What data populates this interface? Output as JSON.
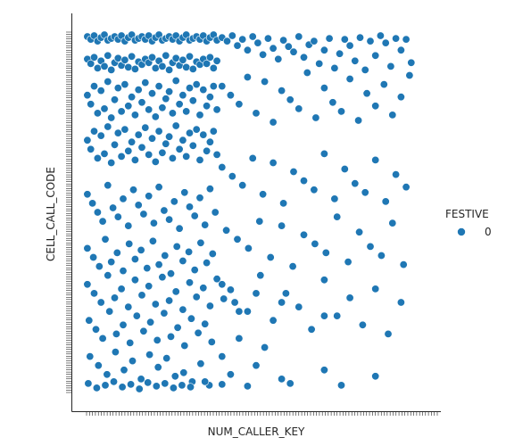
{
  "chart_data": {
    "type": "scatter",
    "title": "",
    "xlabel": "NUM_CALLER_KEY",
    "ylabel": "CELL_CALL_CODE",
    "xlim": [
      0,
      400
    ],
    "ylim": [
      0,
      400
    ],
    "x_tick_labels": [],
    "y_tick_labels": [],
    "x_tick_count": 120,
    "y_tick_count": 160,
    "grid": false,
    "legend": {
      "title": "FESTIVE",
      "placement": "right",
      "entries": [
        {
          "label": "0",
          "color": "#1f77b4"
        }
      ]
    },
    "series": [
      {
        "color": "#1f77b4",
        "x": [
          2,
          6,
          10,
          14,
          18,
          22,
          26,
          30,
          34,
          38,
          42,
          46,
          50,
          54,
          58,
          62,
          66,
          70,
          74,
          78,
          82,
          86,
          90,
          94,
          98,
          102,
          106,
          110,
          114,
          118,
          122,
          126,
          130,
          134,
          138,
          142,
          146,
          150,
          154,
          2,
          6,
          10,
          14,
          18,
          22,
          26,
          30,
          34,
          38,
          42,
          46,
          50,
          54,
          58,
          62,
          66,
          70,
          74,
          78,
          82,
          86,
          90,
          94,
          98,
          102,
          106,
          110,
          114,
          118,
          122,
          126,
          130,
          134,
          138,
          142,
          146,
          150,
          154,
          2,
          6,
          10,
          14,
          18,
          22,
          26,
          30,
          34,
          38,
          42,
          46,
          50,
          54,
          58,
          62,
          66,
          70,
          74,
          78,
          82,
          86,
          90,
          94,
          98,
          102,
          106,
          110,
          114,
          118,
          122,
          126,
          130,
          134,
          138,
          142,
          146,
          150,
          154,
          2,
          6,
          10,
          14,
          18,
          22,
          26,
          30,
          34,
          38,
          42,
          46,
          50,
          54,
          58,
          62,
          66,
          70,
          74,
          78,
          82,
          86,
          90,
          94,
          98,
          102,
          106,
          110,
          114,
          118,
          122,
          126,
          130,
          134,
          138,
          142,
          146,
          150,
          154,
          160,
          166,
          172,
          178,
          184,
          190,
          196,
          202,
          208,
          214,
          220,
          226,
          232,
          238,
          244,
          250,
          256,
          262,
          268,
          274,
          280,
          286,
          292,
          298,
          304,
          310,
          316,
          322,
          328,
          334,
          340,
          346,
          352,
          358,
          364,
          370,
          376,
          382,
          160,
          170,
          180,
          190,
          200,
          210,
          220,
          230,
          240,
          250,
          260,
          270,
          280,
          290,
          300,
          310,
          320,
          330,
          340,
          350,
          360,
          370,
          380,
          160,
          172,
          184,
          196,
          208,
          220,
          232,
          244,
          256,
          268,
          280,
          292,
          304,
          316,
          328,
          340,
          352,
          364,
          376,
          165,
          178,
          191,
          204,
          217,
          230,
          243,
          256,
          269,
          282,
          295,
          308,
          321,
          334,
          347,
          360,
          373,
          2,
          8,
          14,
          20,
          26,
          32,
          38,
          44,
          50,
          56,
          62,
          68,
          74,
          80,
          86,
          92,
          98,
          104,
          110,
          116,
          122,
          128,
          134,
          140,
          146,
          152,
          2,
          9,
          16,
          23,
          30,
          37,
          44,
          51,
          58,
          65,
          72,
          79,
          86,
          93,
          100,
          107,
          114,
          121,
          128,
          135,
          142,
          149,
          2,
          10,
          18,
          26,
          34,
          42,
          50,
          58,
          66,
          74,
          82,
          90,
          98,
          106,
          114,
          122,
          130,
          138,
          146,
          154,
          162,
          170,
          180,
          200,
          230,
          280,
          4,
          12,
          20,
          28,
          36,
          44,
          52,
          60,
          68,
          76,
          84,
          92,
          100,
          108,
          116,
          124,
          132,
          140,
          148,
          160,
          180,
          210,
          160,
          175,
          190,
          205,
          220,
          235,
          250,
          265,
          280,
          295,
          310,
          325,
          340,
          355,
          370,
          5,
          15,
          25,
          35,
          45,
          55,
          65,
          75,
          85,
          95,
          105,
          115,
          125,
          135,
          145,
          170,
          200,
          230,
          280,
          340,
          3,
          13,
          23,
          33,
          43,
          53,
          63,
          73,
          83,
          93,
          103,
          113,
          123,
          140,
          160,
          190,
          240,
          300
        ],
        "y": [
          395,
          392,
          396,
          390,
          394,
          397,
          391,
          393,
          395,
          392,
          396,
          390,
          394,
          397,
          391,
          393,
          395,
          392,
          396,
          390,
          394,
          397,
          391,
          393,
          395,
          392,
          396,
          390,
          394,
          397,
          391,
          393,
          395,
          392,
          396,
          390,
          394,
          397,
          391,
          370,
          365,
          372,
          360,
          368,
          362,
          374,
          358,
          366,
          371,
          363,
          369,
          361,
          373,
          359,
          367,
          364,
          370,
          366,
          372,
          360,
          368,
          362,
          374,
          358,
          366,
          371,
          363,
          369,
          361,
          373,
          359,
          367,
          364,
          370,
          365,
          372,
          360,
          368,
          330,
          320,
          340,
          310,
          335,
          315,
          345,
          305,
          325,
          338,
          312,
          342,
          318,
          328,
          308,
          336,
          322,
          344,
          314,
          332,
          306,
          340,
          316,
          326,
          334,
          310,
          346,
          320,
          330,
          312,
          338,
          324,
          342,
          308,
          336,
          318,
          328,
          340,
          314,
          280,
          270,
          290,
          260,
          285,
          265,
          295,
          255,
          275,
          288,
          262,
          292,
          268,
          278,
          258,
          286,
          272,
          294,
          264,
          282,
          256,
          290,
          266,
          276,
          284,
          260,
          296,
          270,
          280,
          262,
          288,
          274,
          292,
          258,
          286,
          268,
          278,
          290,
          264,
          394,
          390,
          396,
          385,
          392,
          380,
          395,
          388,
          375,
          393,
          382,
          370,
          391,
          384,
          378,
          395,
          372,
          386,
          390,
          365,
          380,
          393,
          360,
          376,
          392,
          385,
          368,
          394,
          358,
          390,
          374,
          396,
          388,
          362,
          393,
          380,
          392,
          366,
          340,
          330,
          320,
          350,
          310,
          345,
          300,
          335,
          325,
          315,
          355,
          305,
          338,
          322,
          312,
          348,
          302,
          332,
          318,
          342,
          308,
          328,
          352,
          250,
          240,
          230,
          260,
          220,
          255,
          210,
          245,
          235,
          225,
          265,
          215,
          248,
          232,
          222,
          258,
          212,
          242,
          228,
          180,
          170,
          160,
          190,
          150,
          185,
          140,
          175,
          165,
          155,
          195,
          145,
          178,
          162,
          152,
          188,
          142,
          220,
          210,
          200,
          190,
          230,
          205,
          195,
          215,
          185,
          225,
          208,
          198,
          218,
          188,
          228,
          202,
          192,
          212,
          182,
          222,
          206,
          196,
          216,
          186,
          226,
          200,
          160,
          150,
          140,
          170,
          145,
          155,
          135,
          165,
          148,
          158,
          138,
          168,
          142,
          152,
          132,
          162,
          146,
          156,
          136,
          166,
          144,
          154,
          120,
          110,
          100,
          130,
          105,
          115,
          95,
          125,
          108,
          118,
          98,
          128,
          102,
          112,
          92,
          122,
          106,
          116,
          96,
          126,
          104,
          114,
          90,
          110,
          100,
          85,
          80,
          70,
          60,
          90,
          65,
          75,
          55,
          85,
          68,
          78,
          58,
          88,
          62,
          72,
          52,
          82,
          66,
          76,
          56,
          40,
          60,
          50,
          120,
          100,
          90,
          130,
          80,
          110,
          95,
          70,
          125,
          85,
          105,
          75,
          115,
          65,
          100,
          40,
          30,
          20,
          45,
          25,
          35,
          15,
          42,
          28,
          38,
          18,
          22,
          12,
          32,
          8,
          20,
          30,
          15,
          25,
          18,
          10,
          5,
          8,
          12,
          6,
          9,
          4,
          11,
          7,
          10,
          5,
          8,
          6,
          12,
          9,
          7,
          10,
          8
        ]
      }
    ]
  }
}
